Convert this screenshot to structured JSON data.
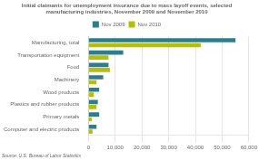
{
  "chart_data": {
    "type": "bar",
    "orientation": "horizontal",
    "title": "Initial claimants for unemployment insurance due to mass layoff events, selected\nmanufacturing industries, November 2009 and November 2010",
    "categories": [
      "Manufacturing, total",
      "Transportation equipment",
      "Food",
      "Machinery",
      "Wood products",
      "Plastics and rubber products",
      "Primary metals",
      "Computer and electric products"
    ],
    "series": [
      {
        "name": "Nov 2009",
        "color": "#2e7d8c",
        "values": [
          55000,
          13000,
          7500,
          5500,
          4000,
          3500,
          4000,
          3000
        ]
      },
      {
        "name": "Nov 2010",
        "color": "#b5bf00",
        "values": [
          42000,
          7500,
          8000,
          3000,
          2000,
          3000,
          1200,
          1500
        ]
      }
    ],
    "xlim": [
      0,
      60000
    ],
    "xticks": [
      0,
      {
        "value": 10000,
        "label": "10,000"
      },
      {
        "value": 20000,
        "label": "20,000"
      },
      {
        "value": 30000,
        "label": "30,000"
      },
      {
        "value": 40000,
        "label": "40,000"
      },
      {
        "value": 50000,
        "label": "50,000"
      },
      {
        "value": 60000,
        "label": "60,000"
      }
    ],
    "grid": true,
    "legend": "top",
    "annotations": [
      "Source: U.S. Bureau of Labor Statistics"
    ]
  }
}
